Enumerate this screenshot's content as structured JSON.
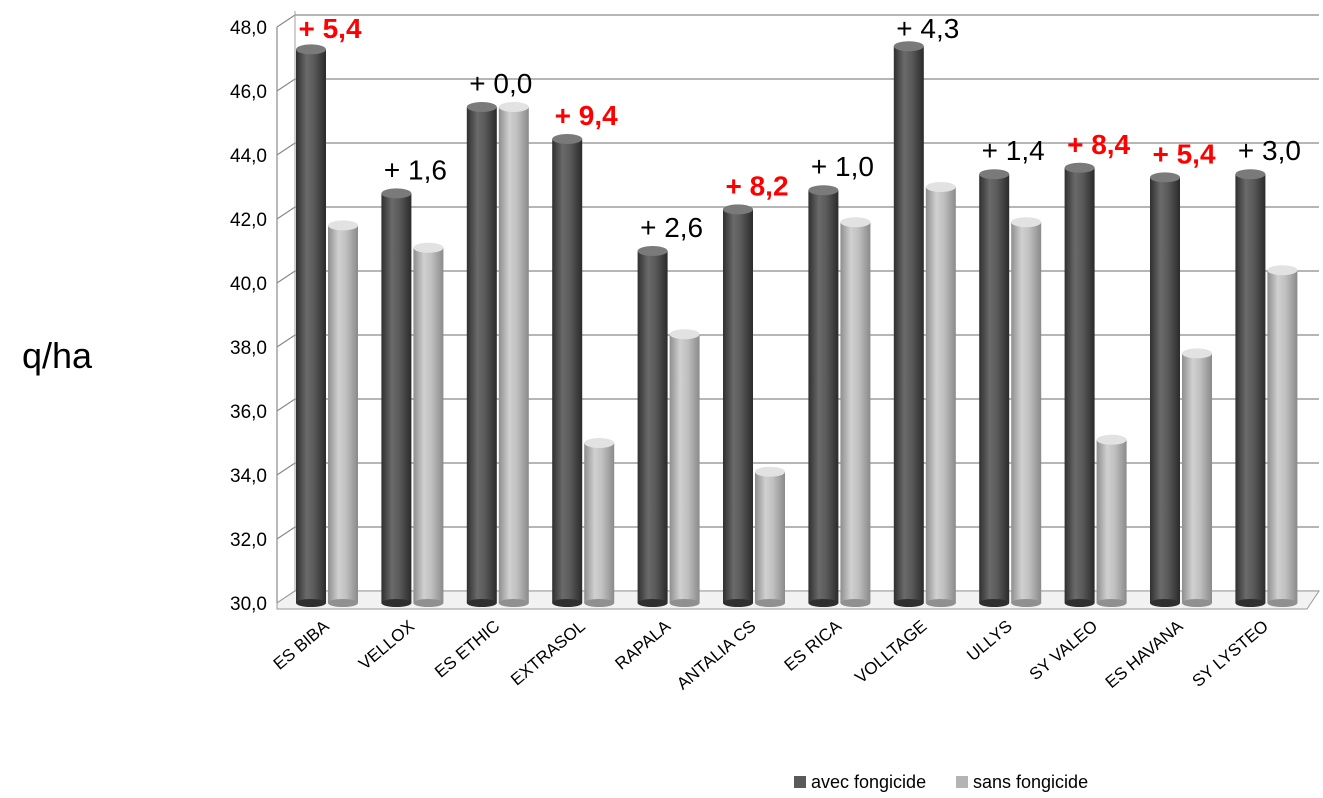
{
  "chart_data": {
    "type": "bar",
    "ylabel": "q/ha",
    "xlabel": "",
    "title": "",
    "ylim": [
      30,
      48
    ],
    "ytick_step": 2,
    "ytick_labels": [
      "30,0",
      "32,0",
      "34,0",
      "36,0",
      "38,0",
      "40,0",
      "42,0",
      "44,0",
      "46,0",
      "48,0"
    ],
    "grid": true,
    "legend_position": "bottom",
    "categories": [
      "ES BIBA",
      "VELLOX",
      "ES ETHIC",
      "EXTRASOL",
      "RAPALA",
      "ANTALIA CS",
      "ES RICA",
      "VOLLTAGE",
      "ULLYS",
      "SY VALEO",
      "ES HAVANA",
      "SY LYSTEO"
    ],
    "series": [
      {
        "name": "avec fongicide",
        "color": "#5a5a5a",
        "values": [
          47.3,
          42.8,
          45.5,
          44.5,
          41.0,
          42.3,
          42.9,
          47.4,
          43.4,
          43.6,
          43.3,
          43.4
        ]
      },
      {
        "name": "sans fongicide",
        "color": "#b4b4b4",
        "values": [
          41.8,
          41.1,
          45.5,
          35.0,
          38.4,
          34.1,
          41.9,
          43.0,
          41.9,
          35.1,
          37.8,
          40.4
        ]
      }
    ],
    "data_labels": [
      "+ 5,4",
      "+ 1,6",
      "+ 0,0",
      "+ 9,4",
      "+ 2,6",
      "+ 8,2",
      "+ 1,0",
      "+ 4,3",
      "+ 1,4",
      "+ 8,4",
      "+ 5,4",
      "+ 3,0"
    ],
    "highlighted": [
      true,
      false,
      false,
      true,
      false,
      true,
      false,
      false,
      false,
      true,
      true,
      false
    ],
    "highlight_color": "#ff0000"
  }
}
